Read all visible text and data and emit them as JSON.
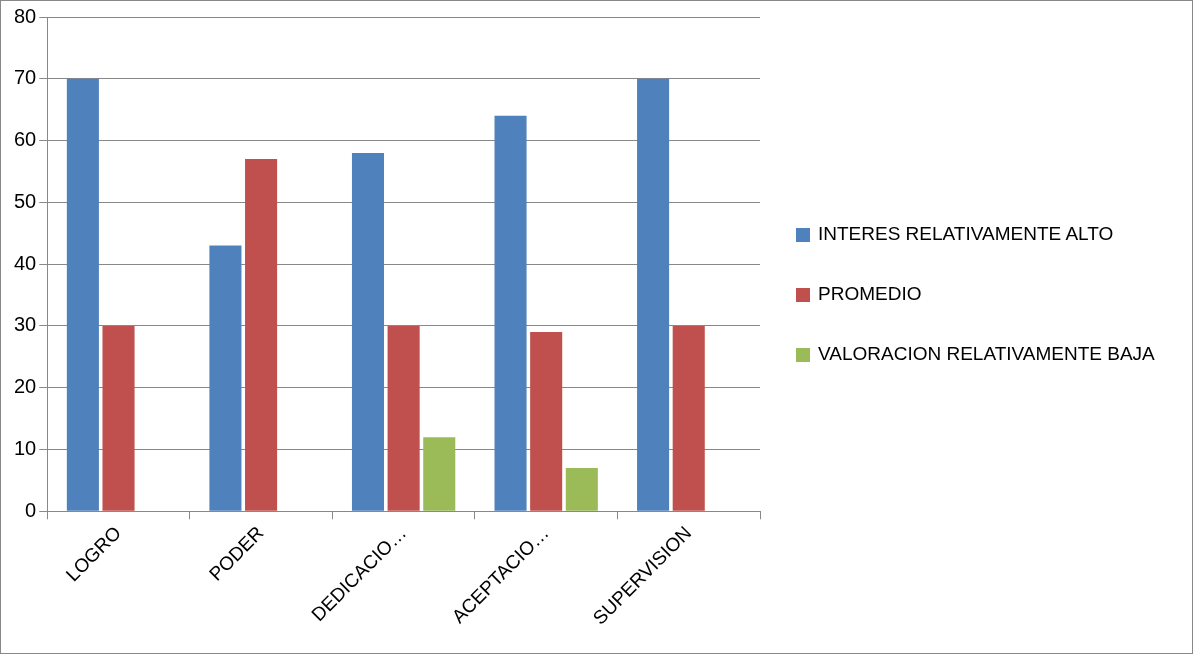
{
  "chart_data": {
    "type": "bar",
    "categories": [
      "LOGRO",
      "PODER",
      "DEDICACIO…",
      "ACEPTACIO…",
      "SUPERVISION"
    ],
    "series": [
      {
        "name": "INTERES RELATIVAMENTE ALTO",
        "color": "#4f81bd",
        "values": [
          70,
          43,
          58,
          64,
          70
        ]
      },
      {
        "name": "PROMEDIO",
        "color": "#c0504d",
        "values": [
          30,
          57,
          30,
          29,
          30
        ]
      },
      {
        "name": "VALORACION RELATIVAMENTE BAJA",
        "color": "#9bbb59",
        "values": [
          null,
          null,
          12,
          7,
          null
        ]
      }
    ],
    "ylim": [
      0,
      80
    ],
    "yticks": [
      0,
      10,
      20,
      30,
      40,
      50,
      60,
      70,
      80
    ],
    "grid": "y",
    "legend": "right"
  }
}
